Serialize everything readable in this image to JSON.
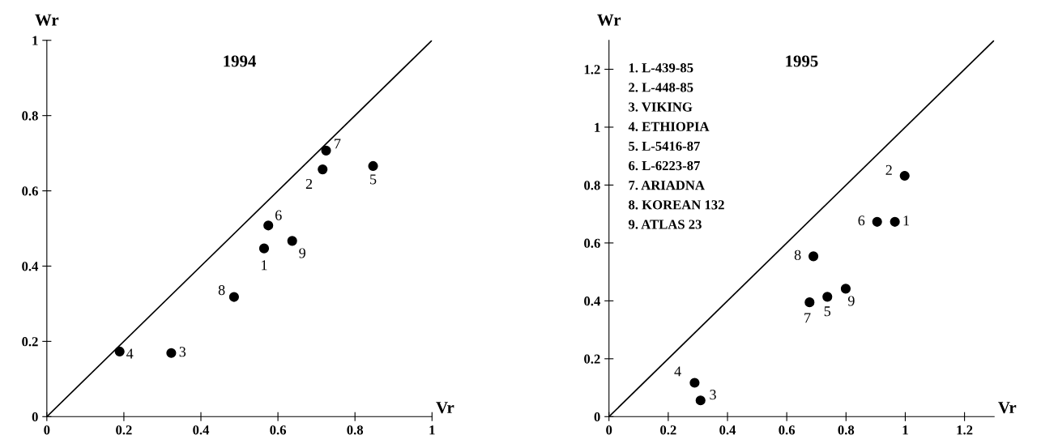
{
  "chart_data": [
    {
      "type": "scatter",
      "title": "1994",
      "xlabel": "Vr",
      "ylabel": "Wr",
      "xlim": [
        0,
        1
      ],
      "ylim": [
        0,
        1
      ],
      "xticks": [
        0,
        0.2,
        0.4,
        0.6,
        0.8,
        1
      ],
      "yticks": [
        0,
        0.2,
        0.4,
        0.6,
        0.8,
        1
      ],
      "grid": false,
      "legend": false,
      "series": [
        {
          "marker": "circle",
          "color": "#000000",
          "x": [
            0.564,
            0.716,
            0.323,
            0.189,
            0.847,
            0.575,
            0.725,
            0.486,
            0.637
          ],
          "values": [
            0.447,
            0.657,
            0.169,
            0.173,
            0.666,
            0.508,
            0.707,
            0.318,
            0.467
          ]
        },
        {
          "type": "line",
          "color": "#000000",
          "x": [
            0,
            1
          ],
          "values": [
            0,
            1
          ]
        }
      ],
      "annotations": [
        {
          "text": "1",
          "x": 0.564,
          "y": 0.447
        },
        {
          "text": "2",
          "x": 0.716,
          "y": 0.657
        },
        {
          "text": "3",
          "x": 0.323,
          "y": 0.169
        },
        {
          "text": "4",
          "x": 0.189,
          "y": 0.173
        },
        {
          "text": "5",
          "x": 0.847,
          "y": 0.666
        },
        {
          "text": "6",
          "x": 0.575,
          "y": 0.508
        },
        {
          "text": "7",
          "x": 0.725,
          "y": 0.707
        },
        {
          "text": "8",
          "x": 0.486,
          "y": 0.318
        },
        {
          "text": "9",
          "x": 0.637,
          "y": 0.467
        }
      ]
    },
    {
      "type": "scatter",
      "title": "1995",
      "xlabel": "Vr",
      "ylabel": "Wr",
      "xlim": [
        0,
        1.3
      ],
      "ylim": [
        0,
        1.3
      ],
      "xticks": [
        0,
        0.2,
        0.4,
        0.6,
        0.8,
        1,
        1.2
      ],
      "yticks": [
        0,
        0.2,
        0.4,
        0.6,
        0.8,
        1,
        1.2
      ],
      "grid": false,
      "legend": false,
      "series": [
        {
          "marker": "circle",
          "color": "#000000",
          "x": [
            0.965,
            0.998,
            0.309,
            0.289,
            0.737,
            0.905,
            0.677,
            0.69,
            0.799
          ],
          "values": [
            0.673,
            0.832,
            0.056,
            0.117,
            0.414,
            0.673,
            0.395,
            0.554,
            0.442
          ]
        },
        {
          "type": "line",
          "color": "#000000",
          "x": [
            0,
            1.3
          ],
          "values": [
            0,
            1.3
          ]
        }
      ],
      "annotations": [
        {
          "text": "1",
          "x": 0.965,
          "y": 0.673
        },
        {
          "text": "2",
          "x": 0.998,
          "y": 0.832
        },
        {
          "text": "3",
          "x": 0.309,
          "y": 0.056
        },
        {
          "text": "4",
          "x": 0.289,
          "y": 0.117
        },
        {
          "text": "5",
          "x": 0.737,
          "y": 0.414
        },
        {
          "text": "6",
          "x": 0.905,
          "y": 0.673
        },
        {
          "text": "7",
          "x": 0.677,
          "y": 0.395
        },
        {
          "text": "8",
          "x": 0.69,
          "y": 0.554
        },
        {
          "text": "9",
          "x": 0.799,
          "y": 0.442
        },
        "1. L-439-85",
        "2. L-448-85",
        "3. VIKING",
        "4. ETHIOPIA",
        "5. L-5416-87",
        "6. L-6223-87",
        "7. ARIADNA",
        "8. KOREAN 132",
        "9. ATLAS 23"
      ]
    }
  ]
}
